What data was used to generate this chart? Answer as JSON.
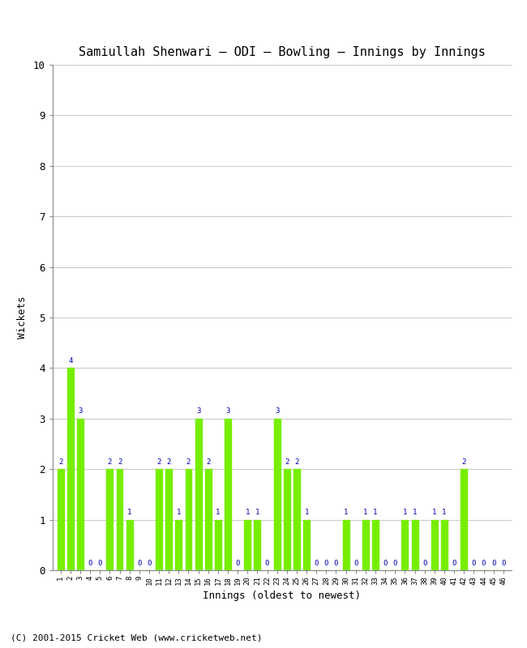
{
  "title": "Samiullah Shenwari – ODI – Bowling – Innings by Innings",
  "xlabel": "Innings (oldest to newest)",
  "ylabel": "Wickets",
  "ylim": [
    0,
    10
  ],
  "yticks": [
    0,
    1,
    2,
    3,
    4,
    5,
    6,
    7,
    8,
    9,
    10
  ],
  "bar_color": "#77ee00",
  "annotation_color": "#0000aa",
  "background_color": "#ffffff",
  "grid_color": "#cccccc",
  "footer": "(C) 2001-2015 Cricket Web (www.cricketweb.net)",
  "innings_labels": [
    "1",
    "2",
    "3",
    "4",
    "5",
    "6",
    "7",
    "8",
    "9",
    "10",
    "11",
    "12",
    "13",
    "14",
    "15",
    "16",
    "17",
    "18",
    "19",
    "20",
    "21",
    "22",
    "23",
    "24",
    "25",
    "26",
    "27",
    "28",
    "29",
    "30",
    "31",
    "32",
    "33",
    "34",
    "35",
    "36",
    "37",
    "38",
    "39",
    "40",
    "41",
    "42",
    "43",
    "44",
    "45",
    "46"
  ],
  "wickets": [
    2,
    4,
    3,
    0,
    0,
    2,
    2,
    1,
    0,
    0,
    2,
    2,
    1,
    2,
    3,
    2,
    1,
    3,
    0,
    1,
    1,
    0,
    3,
    2,
    2,
    1,
    0,
    0,
    0,
    1,
    0,
    1,
    1,
    0,
    0,
    1,
    1,
    0,
    1,
    1,
    0,
    2,
    0,
    0,
    0,
    0
  ]
}
